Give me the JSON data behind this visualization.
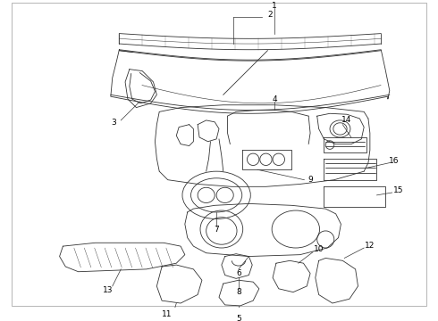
{
  "background_color": "#ffffff",
  "line_color": "#333333",
  "label_color": "#000000",
  "fig_width": 4.9,
  "fig_height": 3.6,
  "dpi": 100,
  "border_color": "#cccccc",
  "label_fontsize": 6.5,
  "lw": 0.6
}
